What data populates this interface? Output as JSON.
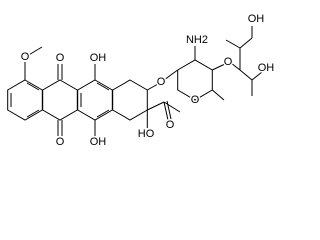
{
  "atom_labels": [
    "O",
    "O",
    "O",
    "OH",
    "OH",
    "O",
    "HO",
    "O",
    "O",
    "NH2",
    "O",
    "OH",
    "OH"
  ]
}
